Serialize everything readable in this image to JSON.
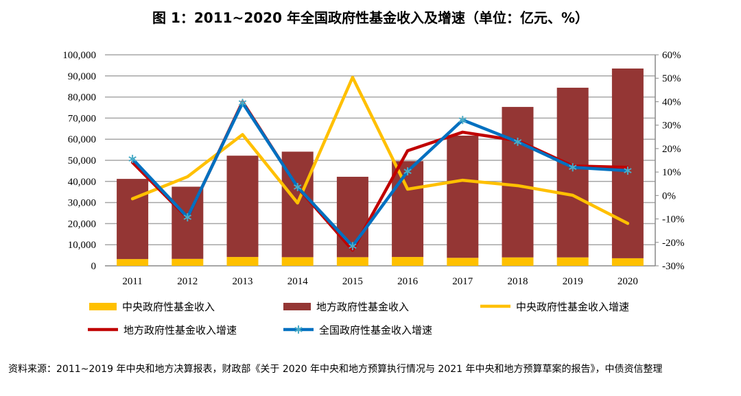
{
  "chart_data": {
    "type": "bar+line",
    "title": "图 1：2011~2020 年全国政府性基金收入及增速（单位：亿元、%）",
    "categories": [
      "2011",
      "2012",
      "2013",
      "2014",
      "2015",
      "2016",
      "2017",
      "2018",
      "2019",
      "2020"
    ],
    "left_axis": {
      "ylim": [
        0,
        100000
      ],
      "ticks": [
        "0",
        "10,000",
        "20,000",
        "30,000",
        "40,000",
        "50,000",
        "60,000",
        "70,000",
        "80,000",
        "90,000",
        "100,000"
      ]
    },
    "right_axis": {
      "ylim": [
        -30,
        60
      ],
      "ticks": [
        "-30%",
        "-20%",
        "-10%",
        "0%",
        "10%",
        "20%",
        "30%",
        "40%",
        "50%",
        "60%"
      ]
    },
    "grid": true,
    "legend_position": "bottom",
    "series": [
      {
        "name": "中央政府性基金收入",
        "type": "stacked-bar",
        "axis": "left",
        "color": "#FFC000",
        "values": [
          3200,
          3300,
          4200,
          4100,
          4100,
          4200,
          3800,
          4000,
          4000,
          3600
        ]
      },
      {
        "name": "地方政府性基金收入",
        "type": "stacked-bar",
        "axis": "left",
        "color": "#943634",
        "values": [
          38000,
          34200,
          48000,
          50000,
          38100,
          45400,
          57900,
          71300,
          80400,
          89900
        ]
      },
      {
        "name": "中央政府性基金收入增速",
        "type": "line",
        "axis": "right",
        "color": "#FFC000",
        "values": [
          -1.4,
          8.0,
          26.0,
          -3.2,
          50.4,
          2.7,
          6.5,
          4.2,
          0.1,
          -11.9
        ]
      },
      {
        "name": "地方政府性基金收入增速",
        "type": "line",
        "axis": "right",
        "color": "#C00000",
        "values": [
          14.1,
          -9.6,
          40.0,
          3.5,
          -23.3,
          19.1,
          27.0,
          23.4,
          12.6,
          12.0
        ]
      },
      {
        "name": "全国政府性基金收入增速",
        "type": "line",
        "axis": "right",
        "color": "#0070C0",
        "marker": "asterisk",
        "marker_color": "#4BACC6",
        "values": [
          15.6,
          -9.3,
          39.5,
          3.6,
          -21.6,
          10.3,
          32.2,
          22.9,
          12.0,
          10.6
        ]
      }
    ]
  },
  "note": "资料来源：2011~2019 年中央和地方决算报表，财政部《关于 2020 年中央和地方预算执行情况与 2021 年中央和地方预算草案的报告》，中债资信整理"
}
